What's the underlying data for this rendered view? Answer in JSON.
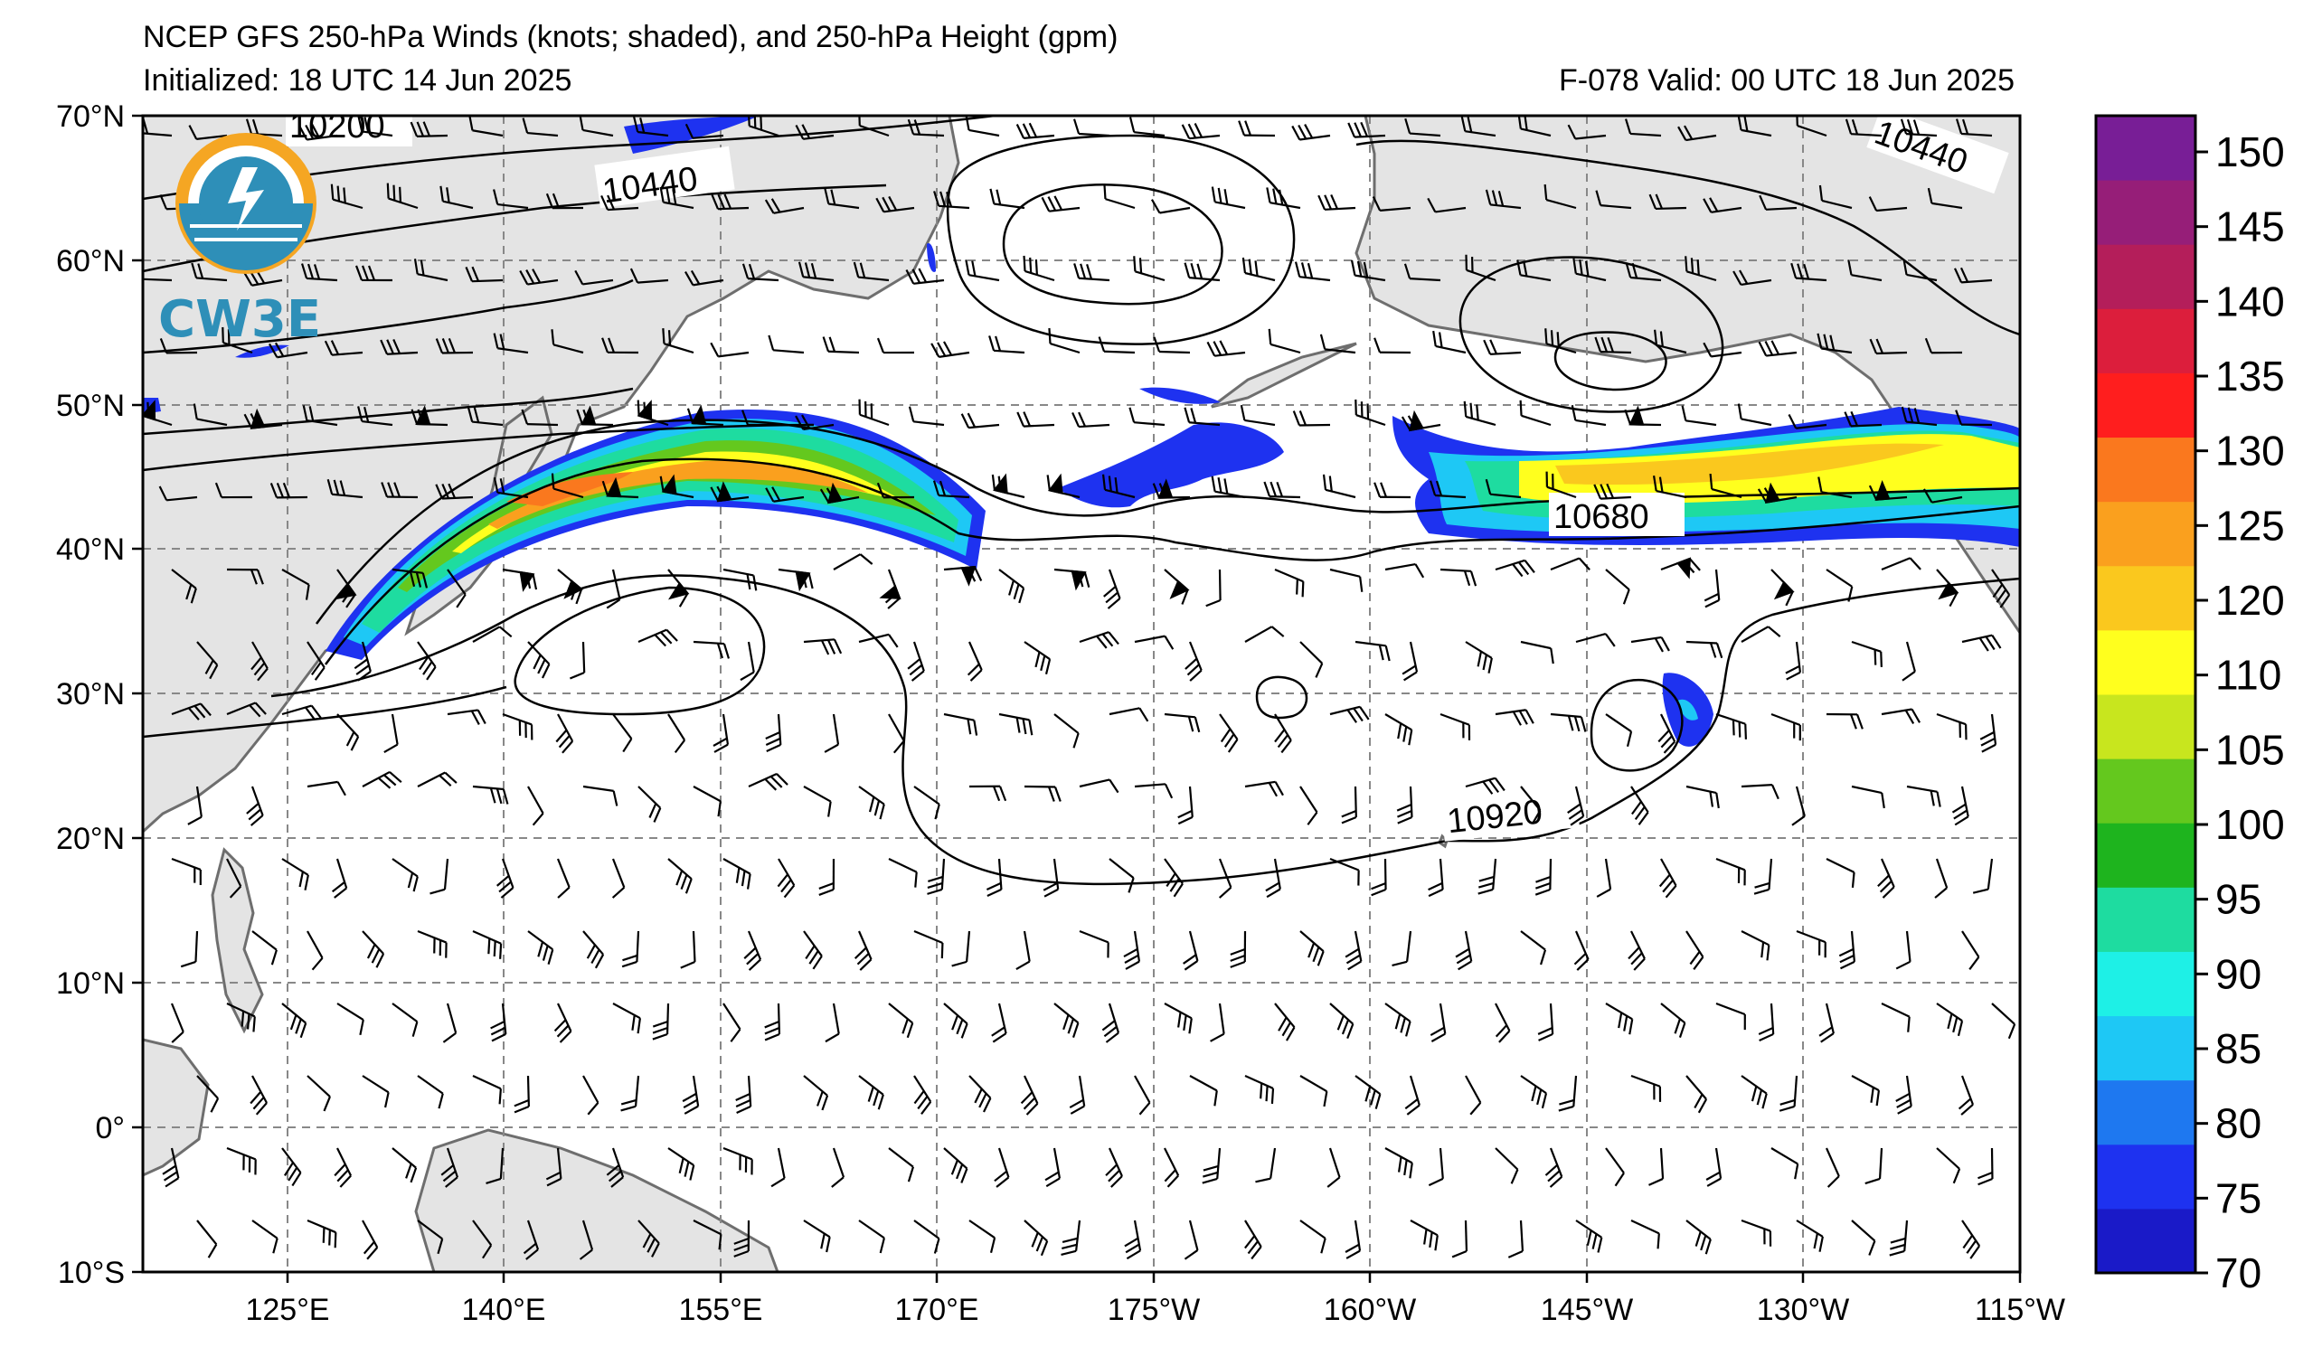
{
  "title": "NCEP GFS 250-hPa Winds (knots; shaded), and 250-hPa Height (gpm)",
  "initialized": "Initialized: 18 UTC 14 Jun 2025",
  "valid": "F-078  Valid: 00 UTC 18 Jun 2025",
  "logo": {
    "text": "CW3E",
    "icon": "cw3e-logo-icon"
  },
  "lat_labels": [
    "70°N",
    "60°N",
    "50°N",
    "40°N",
    "30°N",
    "20°N",
    "10°N",
    "0°",
    "10°S"
  ],
  "lon_labels": [
    "125°E",
    "140°E",
    "155°E",
    "170°E",
    "175°W",
    "160°W",
    "145°W",
    "130°W",
    "115°W"
  ],
  "contour_labels": [
    "10200",
    "10440",
    "10440",
    "10680",
    "10920"
  ],
  "colorbar": {
    "ticks": [
      "70",
      "75",
      "80",
      "85",
      "90",
      "95",
      "100",
      "105",
      "110",
      "120",
      "125",
      "130",
      "135",
      "140",
      "145",
      "150"
    ],
    "colors": [
      "#1a1ac8",
      "#1e32f0",
      "#1e78f0",
      "#1ec8f5",
      "#1ef0e6",
      "#1edca0",
      "#1eb41e",
      "#64c81e",
      "#c8e61e",
      "#ffff1e",
      "#fac81e",
      "#faa01e",
      "#fa781e",
      "#ff1e1e",
      "#dc1e3c",
      "#b41e5a",
      "#961e78",
      "#781e96"
    ]
  },
  "colors": {
    "land": "#e4e4e4",
    "coast": "#6e6e6e",
    "grid": "#888888",
    "contour": "#000000"
  }
}
